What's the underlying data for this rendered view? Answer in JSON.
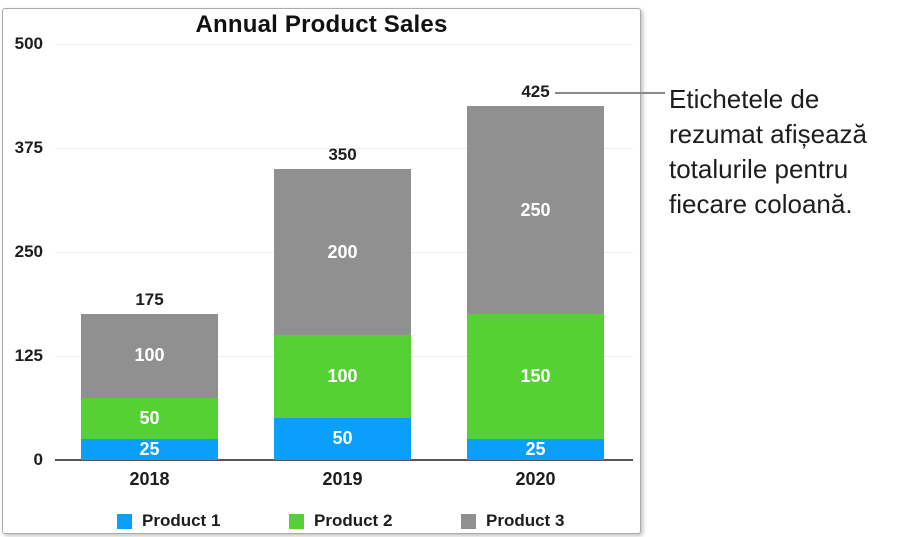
{
  "chart_data": {
    "type": "bar",
    "stacked": true,
    "title": "Annual Product Sales",
    "categories": [
      "2018",
      "2019",
      "2020"
    ],
    "series": [
      {
        "name": "Product 1",
        "color": "#0a9ffb",
        "values": [
          25,
          50,
          25
        ]
      },
      {
        "name": "Product 2",
        "color": "#56d134",
        "values": [
          50,
          100,
          150
        ]
      },
      {
        "name": "Product 3",
        "color": "#909090",
        "values": [
          100,
          200,
          250
        ]
      }
    ],
    "totals": [
      175,
      350,
      425
    ],
    "y_ticks": [
      0,
      125,
      250,
      375,
      500
    ],
    "ylim": [
      0,
      500
    ],
    "grid": true,
    "legend_position": "bottom"
  },
  "callout": {
    "text": "Etichetele de rezumat afișează totalurile pentru fiecare coloană.",
    "lines": [
      "Etichetele de",
      "rezumat afișează",
      "totalurile pentru",
      "fiecare coloană."
    ],
    "attached_to_total": "425"
  },
  "colors": {
    "axis_line": "#55555a",
    "gridline": "#ededed",
    "panel_border": "#ababab",
    "leader_line": "#8a8a8a",
    "text": "#1d1d1f",
    "segment_label_text": "#ffffff"
  }
}
